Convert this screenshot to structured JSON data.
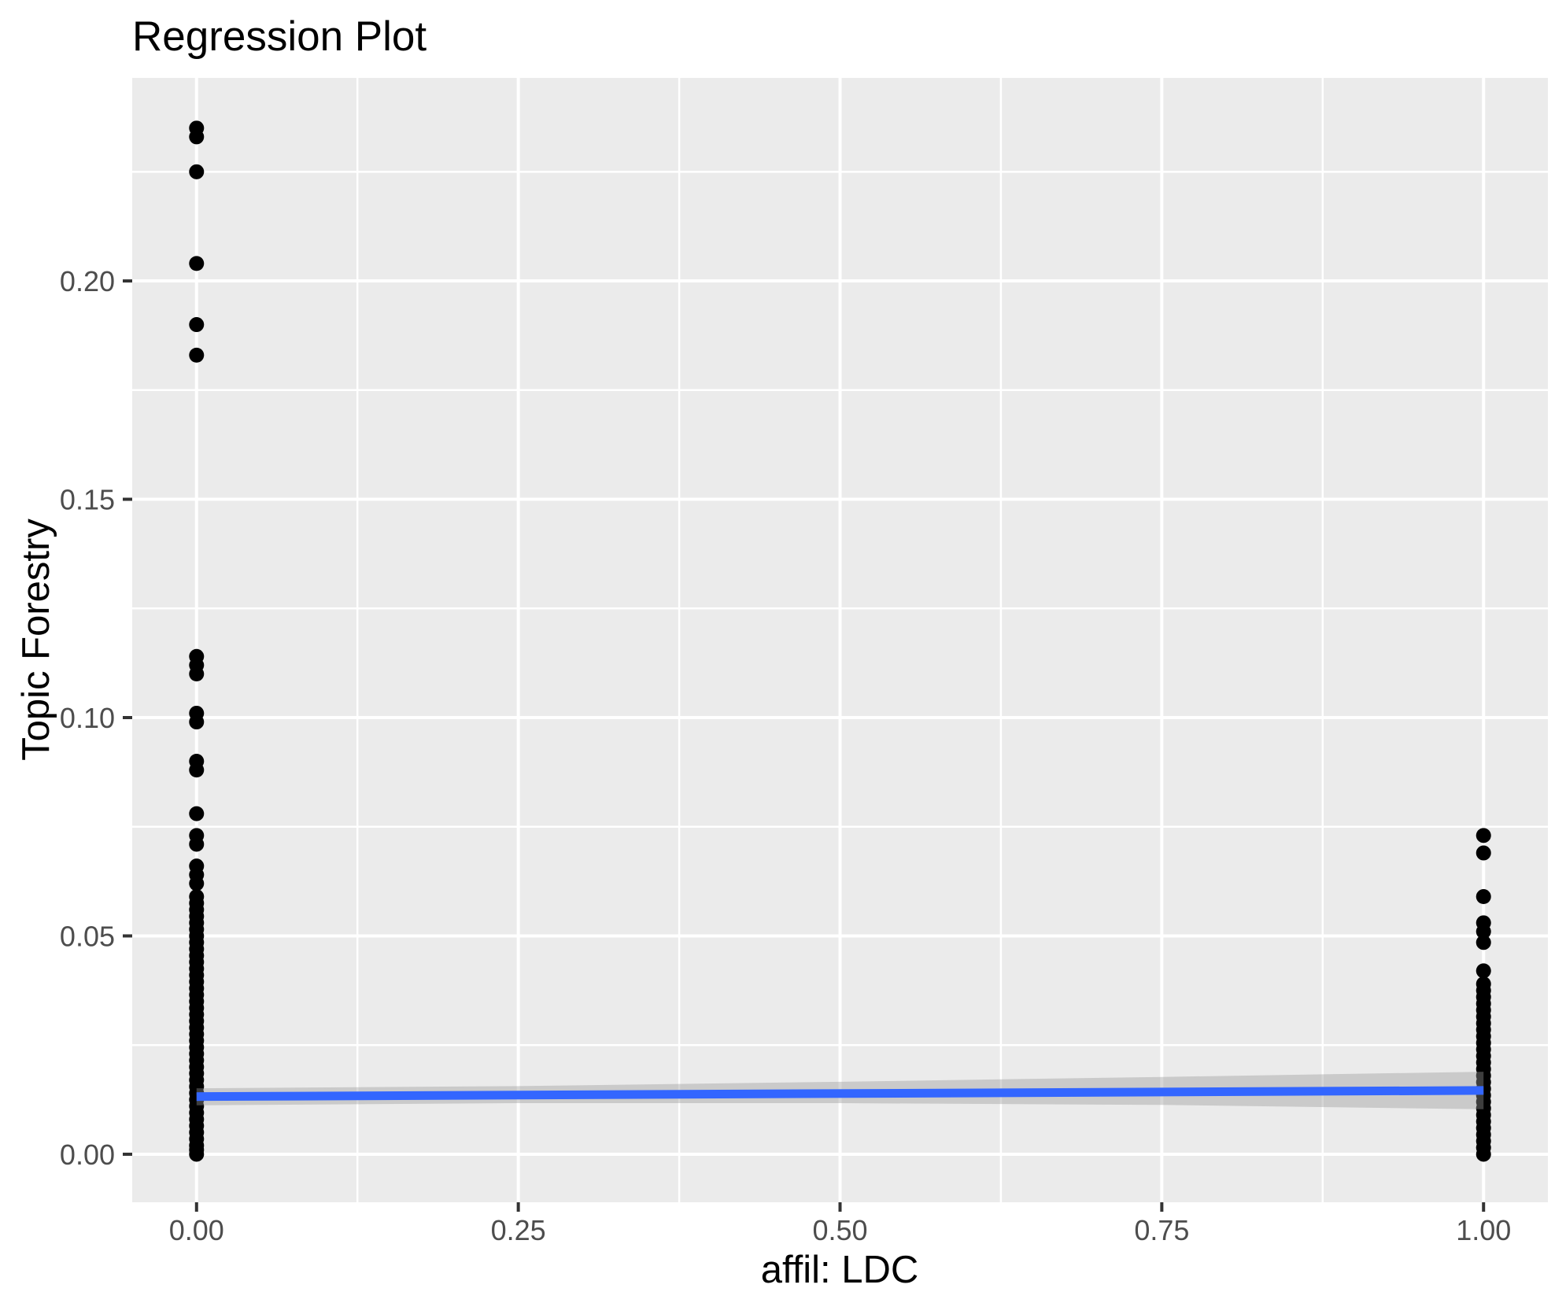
{
  "page": {
    "background": "#FFFFFF"
  },
  "chart_data": {
    "type": "scatter",
    "title": "Regression Plot",
    "xlabel": "affil: LDC",
    "ylabel": "Topic Forestry",
    "x_domain": [
      -0.05,
      1.05
    ],
    "y_domain": [
      -0.011,
      0.2465
    ],
    "x_ticks": {
      "values": [
        0,
        0.25,
        0.5,
        0.75,
        1.0
      ],
      "labels": [
        "0.00",
        "0.25",
        "0.50",
        "0.75",
        "1.00"
      ]
    },
    "y_ticks": {
      "values": [
        0,
        0.05,
        0.1,
        0.15,
        0.2
      ],
      "labels": [
        "0.00",
        "0.05",
        "0.10",
        "0.15",
        "0.20"
      ]
    },
    "x_minor": [
      0.125,
      0.375,
      0.625,
      0.875
    ],
    "y_minor": [
      0.025,
      0.075,
      0.125,
      0.175,
      0.225
    ],
    "grid": "white major and minor gridlines on gray panel",
    "legend": "none",
    "point_radius": 9.5,
    "point_columns": [
      {
        "x": 0,
        "values": [
          0.235,
          0.233,
          0.225,
          0.204,
          0.19,
          0.183,
          0.114,
          0.112,
          0.11,
          0.101,
          0.099,
          0.09,
          0.088,
          0.078,
          0.073,
          0.071,
          0.066,
          0.064,
          0.062,
          0.059,
          0.0575,
          0.056,
          0.0545,
          0.053,
          0.0515,
          0.05,
          0.0485,
          0.047,
          0.0455,
          0.044,
          0.0425,
          0.041,
          0.0395,
          0.038,
          0.0365,
          0.035,
          0.0335,
          0.032,
          0.0305,
          0.029,
          0.0275,
          0.026,
          0.0245,
          0.023,
          0.0215,
          0.02,
          0.0185,
          0.017,
          0.0155,
          0.014,
          0.0125,
          0.011,
          0.0095,
          0.008,
          0.0065,
          0.005,
          0.0035,
          0.002,
          0.001,
          0.0
        ]
      },
      {
        "x": 1,
        "values": [
          0.073,
          0.069,
          0.059,
          0.053,
          0.051,
          0.0485,
          0.042,
          0.039,
          0.0375,
          0.036,
          0.0345,
          0.033,
          0.0315,
          0.03,
          0.0285,
          0.027,
          0.0255,
          0.024,
          0.0225,
          0.021,
          0.0195,
          0.018,
          0.0165,
          0.015,
          0.0135,
          0.012,
          0.0105,
          0.009,
          0.0075,
          0.006,
          0.0045,
          0.003,
          0.0015,
          0.0
        ]
      }
    ],
    "regression_line": {
      "x": [
        0,
        1
      ],
      "y": [
        0.0132,
        0.0146
      ]
    },
    "confidence_band": {
      "x": [
        0,
        0.25,
        0.5,
        0.75,
        1.0
      ],
      "upper": [
        0.0151,
        0.0156,
        0.0166,
        0.0177,
        0.0189
      ],
      "lower": [
        0.0112,
        0.0117,
        0.0117,
        0.0113,
        0.0103
      ]
    },
    "colors": {
      "panel": "#EBEBEB",
      "gridline": "#FFFFFF",
      "point": "#000000",
      "line": "#3366FF",
      "band": "#999999",
      "band_opacity": 0.4,
      "tick": "#333333",
      "tick_label": "#4D4D4D",
      "text": "#000000"
    }
  }
}
